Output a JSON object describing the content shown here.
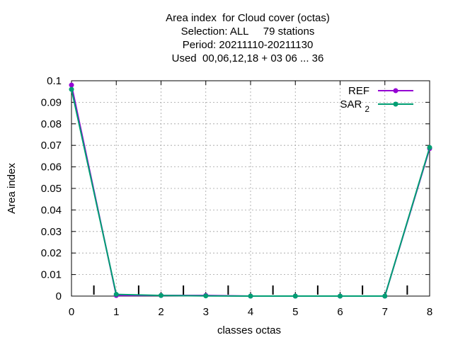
{
  "chart_data": {
    "type": "line",
    "title_lines": [
      "Area index  for Cloud cover (octas)",
      "Selection: ALL     79 stations",
      "Period: 20211110-20211130",
      "Used  00,06,12,18 + 03 06 ... 36"
    ],
    "xlabel": "classes octas",
    "ylabel": "Area index",
    "xlim": [
      0,
      8
    ],
    "ylim": [
      0,
      0.1
    ],
    "x_ticks": [
      "0",
      "1",
      "2",
      "3",
      "4",
      "5",
      "6",
      "7",
      "8"
    ],
    "y_ticks": [
      "0",
      "0.01",
      "0.02",
      "0.03",
      "0.04",
      "0.05",
      "0.06",
      "0.07",
      "0.08",
      "0.09",
      "0.1"
    ],
    "grid": true,
    "legend_position": "top-right",
    "x": [
      0,
      1,
      2,
      3,
      4,
      5,
      6,
      7,
      8
    ],
    "series": [
      {
        "name": "REF",
        "color": "#9400d3",
        "values": [
          0.098,
          0.0003,
          0.0003,
          0.0003,
          0.0,
          0.0,
          0.0,
          0.0,
          0.0685
        ]
      },
      {
        "name": "SAR",
        "name_subscript": "2",
        "color": "#009e73",
        "values": [
          0.096,
          0.0008,
          0.0003,
          0.0001,
          0.0,
          0.0,
          0.0,
          0.0,
          0.069
        ]
      }
    ],
    "bar_markers_x": [
      0.5,
      1.5,
      2.5,
      3.5,
      4.5,
      5.5,
      6.5,
      7.5
    ]
  }
}
